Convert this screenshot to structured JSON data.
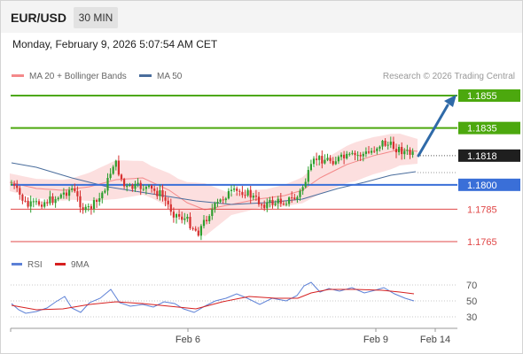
{
  "header": {
    "symbol": "EUR/USD",
    "timeframe": "30 MIN"
  },
  "timestamp": "Monday, February 9, 2026 5:07:54 AM CET",
  "legend": {
    "ma20": "MA 20 + Bollinger Bands",
    "ma50": "MA 50",
    "credit": "Research © 2026 Trading Central"
  },
  "levels": [
    {
      "label": "1.1855",
      "kind": "resistance",
      "value": 1.1855
    },
    {
      "label": "1.1835",
      "kind": "resistance",
      "value": 1.1835
    },
    {
      "label": "1.1818",
      "kind": "last",
      "value": 1.1818
    },
    {
      "label": "1.1800",
      "kind": "pivot",
      "value": 1.18
    },
    {
      "label": "1.1785",
      "kind": "support",
      "value": 1.1785
    },
    {
      "label": "1.1765",
      "kind": "support",
      "value": 1.1765
    }
  ],
  "rsi_legend": {
    "rsi": "RSI",
    "ma9": "9MA"
  },
  "rsi_axis": [
    "70",
    "50",
    "30"
  ],
  "x_axis": [
    "Feb 6",
    "Feb 9",
    "Feb 14"
  ],
  "colors": {
    "green": "#4ca80e",
    "blue": "#3a6fd8",
    "red": "#e04848",
    "dark": "#1f1f1f",
    "bollinger": "#fbd4d4",
    "ma20": "#f4898a",
    "ma50": "#4a6d9c",
    "candle_up": "#2e9e2e",
    "candle_down": "#d63030",
    "arrow": "#2f6aa8",
    "rsi": "#5c80d6",
    "rsi_ma": "#d62020"
  }
}
